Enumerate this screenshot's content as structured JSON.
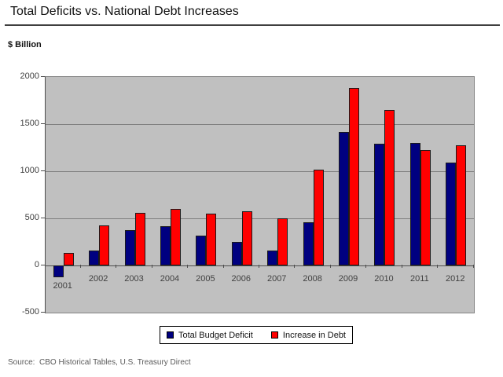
{
  "header": {
    "title": "Total Deficits vs. National Debt Increases",
    "unit_label": "$ Billion"
  },
  "footer": {
    "source": "Source:  CBO Historical Tables, U.S. Treasury Direct"
  },
  "colors": {
    "deficit_bar": "#000080",
    "debt_bar": "#ff0000",
    "plot_background": "#c0c0c0",
    "gridline": "#808080",
    "axis": "#4d4d4d"
  },
  "legend": {
    "items": [
      {
        "label": "Total Budget Deficit",
        "color": "#000080"
      },
      {
        "label": "Increase in Debt",
        "color": "#ff0000"
      }
    ]
  },
  "chart_data": {
    "type": "bar",
    "title": "Total Deficits vs. National Debt Increases",
    "ylabel": "$ Billion",
    "xlabel": "",
    "categories": [
      "2001",
      "2002",
      "2003",
      "2004",
      "2005",
      "2006",
      "2007",
      "2008",
      "2009",
      "2010",
      "2011",
      "2012"
    ],
    "series": [
      {
        "name": "Total Budget Deficit",
        "color": "#000080",
        "values": [
          -128,
          158,
          378,
          413,
          318,
          248,
          161,
          459,
          1413,
          1293,
          1300,
          1089
        ]
      },
      {
        "name": "Increase in Debt",
        "color": "#ff0000",
        "values": [
          133,
          421,
          555,
          596,
          554,
          574,
          501,
          1017,
          1885,
          1652,
          1229,
          1276
        ]
      }
    ],
    "ylim": [
      -500,
      2000
    ],
    "yticks": [
      2000,
      1500,
      1000,
      500,
      0,
      -500
    ],
    "ytick_interval": 500,
    "grid": true,
    "legend_position": "bottom"
  }
}
